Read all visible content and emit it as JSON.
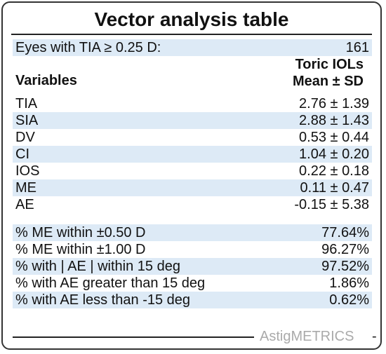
{
  "title": "Vector analysis table",
  "eyes_row": {
    "label": "Eyes with TIA ≥ 0.25 D:",
    "value": "161"
  },
  "header": {
    "variables": "Variables",
    "col_line1": "Toric IOLs",
    "col_line2": "Mean ± SD"
  },
  "variables": [
    {
      "label": "TIA",
      "value": "2.76 ± 1.39"
    },
    {
      "label": "SIA",
      "value": "2.88 ± 1.43"
    },
    {
      "label": "DV",
      "value": "0.53 ± 0.44"
    },
    {
      "label": "CI",
      "value": "1.04 ± 0.20"
    },
    {
      "label": "IOS",
      "value": "0.22 ± 0.18"
    },
    {
      "label": "ME",
      "value": "0.11 ± 0.47"
    },
    {
      "label": "AE",
      "value": "-0.15 ± 5.38"
    }
  ],
  "percentages": [
    {
      "label": "% ME within ±0.50 D",
      "value": "77.64%"
    },
    {
      "label": "% ME within ±1.00 D",
      "value": "96.27%"
    },
    {
      "label": "% with | AE | within 15 deg",
      "value": "97.52%"
    },
    {
      "label": "% with AE greater than 15 deg",
      "value": "1.86%"
    },
    {
      "label": "% with AE less than -15 deg",
      "value": "0.62%"
    }
  ],
  "footer": {
    "brand": "AstigMETRICS",
    "dash": "-"
  },
  "colors": {
    "row_shade": "#ddeaf6",
    "brand_gray": "#aaaaaa"
  }
}
